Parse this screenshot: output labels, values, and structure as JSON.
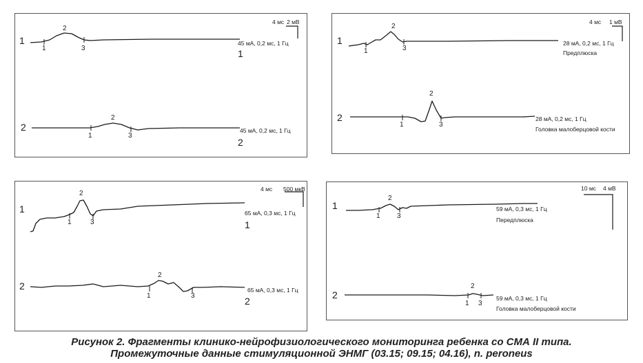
{
  "panels": [
    {
      "scale": {
        "time": "4 мс",
        "amplitude": "2 мВ"
      },
      "traces": [
        {
          "row": "1",
          "end_label": "1",
          "params": "45 мА, 0,2 мс, 1 Гц",
          "site": "",
          "markers": [
            "1",
            "2",
            "3"
          ]
        },
        {
          "row": "2",
          "end_label": "2",
          "params": "45 мА, 0,2 мс, 1 Гц",
          "site": "",
          "markers": [
            "1",
            "2",
            "3"
          ]
        }
      ]
    },
    {
      "scale": {
        "time": "4 мс",
        "amplitude": "1 мВ"
      },
      "traces": [
        {
          "row": "1",
          "end_label": "",
          "params": "28 мА, 0,2 мс, 1 Гц",
          "site": "Предплюска",
          "markers": [
            "1",
            "2",
            "3"
          ]
        },
        {
          "row": "2",
          "end_label": "",
          "params": "28 мА, 0,2 мс, 1 Гц",
          "site": "Головка малоберцовой кости",
          "markers": [
            "1",
            "2",
            "3"
          ]
        }
      ]
    },
    {
      "scale": {
        "time": "4 мс",
        "amplitude": "500 мкВ"
      },
      "traces": [
        {
          "row": "1",
          "end_label": "1",
          "params": "65 мА, 0,3 мс, 1 Гц",
          "site": "",
          "markers": [
            "1",
            "2",
            "3"
          ]
        },
        {
          "row": "2",
          "end_label": "2",
          "params": "65 мА, 0,3 мс, 1 Гц",
          "site": "",
          "markers": [
            "1",
            "2",
            "3"
          ]
        }
      ]
    },
    {
      "scale": {
        "time": "10 мс",
        "amplitude": "4 мВ"
      },
      "traces": [
        {
          "row": "1",
          "end_label": "",
          "params": "59 мА, 0,3 мс, 1 Гц",
          "site": "Передплюска",
          "markers": [
            "1",
            "2",
            "3"
          ]
        },
        {
          "row": "2",
          "end_label": "",
          "params": "59 мА, 0,3 мс, 1 Гц",
          "site": "Головка малоберцовой кости",
          "markers": [
            "1",
            "2",
            "3"
          ]
        }
      ]
    }
  ],
  "caption": {
    "line1": "Рисунок 2. Фрагменты клинико-нейрофизиологического мониторинга ребенка со СМА II типа.",
    "line2": "Промежуточные данные стимуляционной ЭНМГ (03.15; 09.15; 04.16), n. peroneus"
  }
}
